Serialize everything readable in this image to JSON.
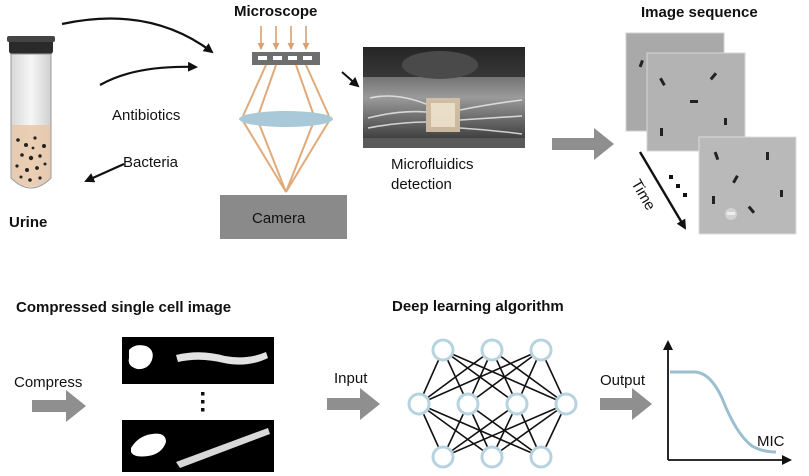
{
  "top": {
    "urine_label": "Urine",
    "antibiotics_label": "Antibiotics",
    "bacteria_label": "Bacteria",
    "microscope_title": "Microscope",
    "camera_label": "Camera",
    "microfluidics_label_line1": "Microfluidics",
    "microfluidics_label_line2": "detection",
    "image_sequence_title": "Image sequence",
    "time_label": "Time"
  },
  "bottom": {
    "compressed_title": "Compressed single cell image",
    "compress_label": "Compress",
    "input_label": "Input",
    "deep_learning_title": "Deep learning algorithm",
    "output_label": "Output",
    "mic_label": "MIC"
  },
  "colors": {
    "arrow_gray": "#8f8f8f",
    "beam_orange": "#e0aa7a",
    "lens_blue": "#a9c8d8",
    "node_blue": "#b7d3df",
    "curve_blue": "#9bbfcf",
    "camera_gray": "#8a8a8a"
  }
}
